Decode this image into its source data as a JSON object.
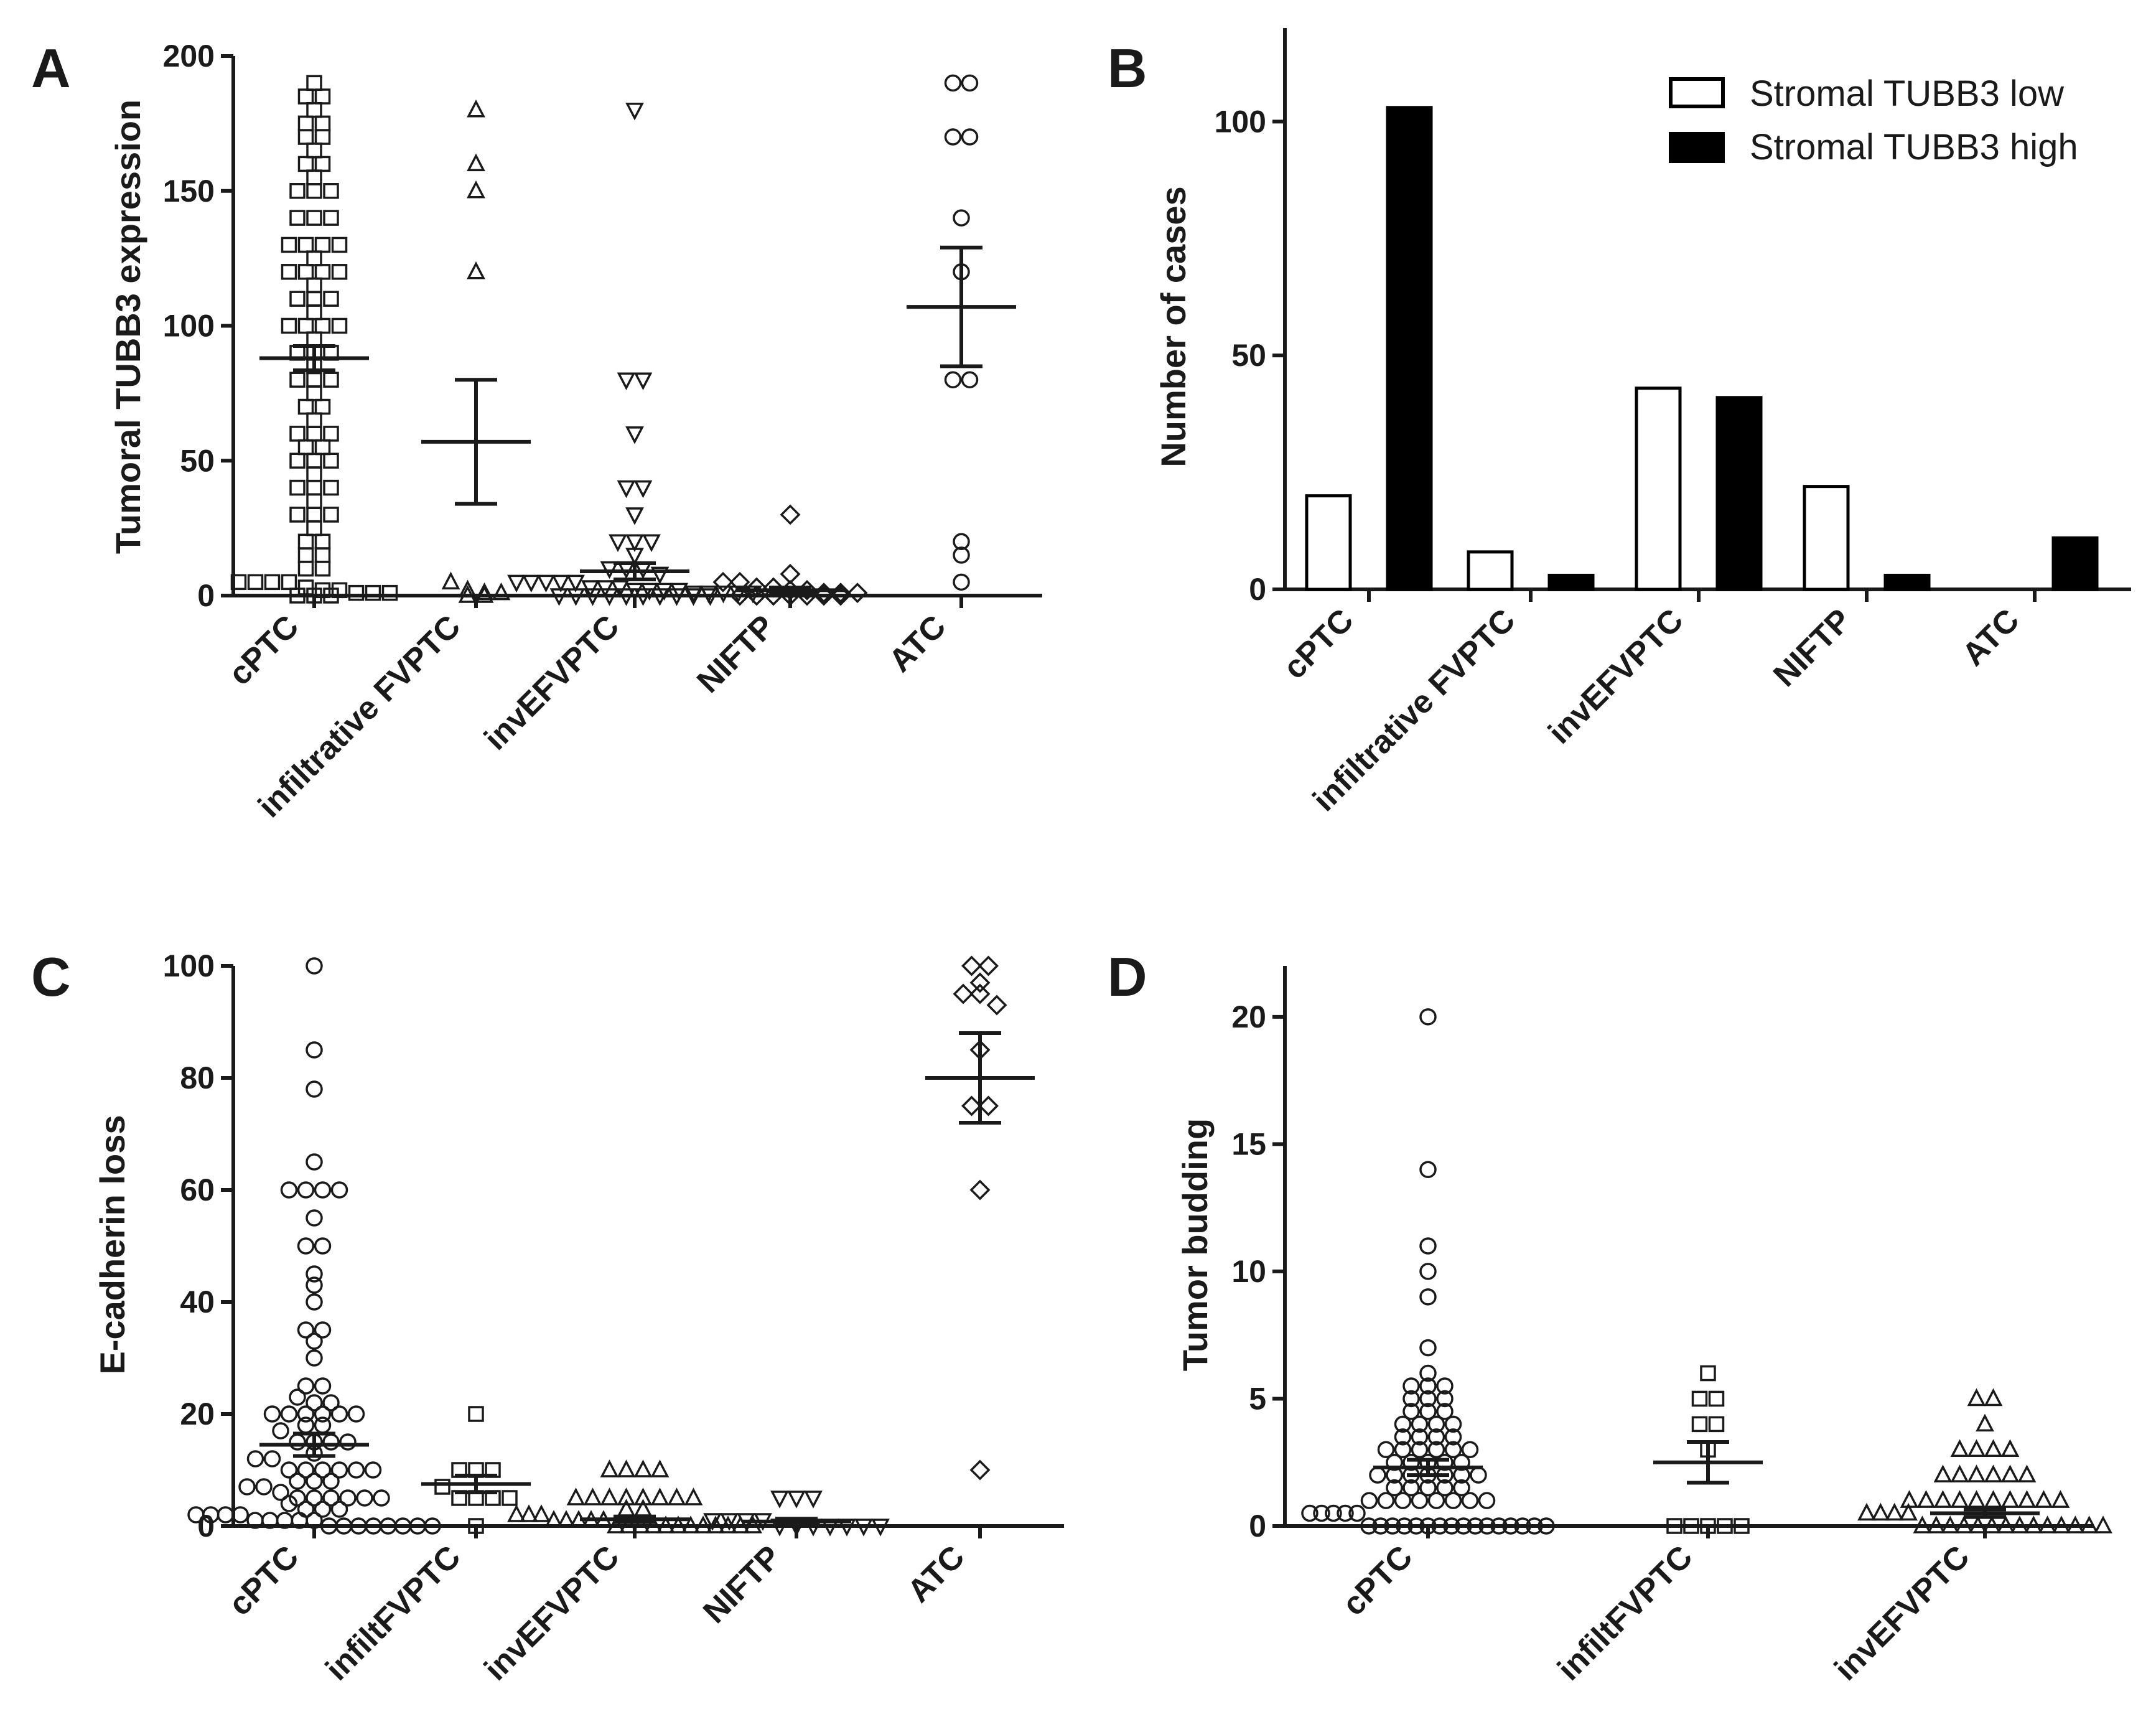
{
  "chart_data": [
    {
      "panel": "A",
      "type": "scatter",
      "ylabel": "Tumoral TUBB3 expression",
      "ylim": [
        0,
        200
      ],
      "yticks": [
        0,
        50,
        100,
        150,
        200
      ],
      "categories": [
        "cPTC",
        "infiltrative FVPTC",
        "invEFVPTC",
        "NIFTP",
        "ATC"
      ],
      "markers": [
        "square",
        "triangle-up",
        "triangle-down",
        "diamond",
        "circle"
      ],
      "groups": [
        {
          "name": "cPTC",
          "mean": 88,
          "sem": 4.5,
          "values": [
            190,
            185,
            185,
            180,
            175,
            175,
            170,
            170,
            165,
            160,
            160,
            155,
            150,
            150,
            150,
            140,
            140,
            140,
            130,
            130,
            130,
            130,
            125,
            120,
            120,
            120,
            120,
            115,
            110,
            110,
            110,
            105,
            100,
            100,
            100,
            100,
            95,
            90,
            90,
            90,
            85,
            80,
            80,
            80,
            75,
            70,
            70,
            65,
            60,
            60,
            60,
            55,
            55,
            50,
            50,
            50,
            45,
            40,
            40,
            40,
            35,
            30,
            30,
            30,
            25,
            20,
            20,
            15,
            15,
            10,
            10,
            5,
            5,
            5,
            5,
            3,
            2,
            2,
            1,
            1,
            1,
            0,
            0,
            0
          ]
        },
        {
          "name": "infiltrative FVPTC",
          "mean": 57,
          "sem": 23,
          "values": [
            180,
            160,
            150,
            120,
            5,
            2,
            1,
            1,
            0,
            0
          ]
        },
        {
          "name": "invEFVPTC",
          "mean": 9,
          "sem": 3,
          "values": [
            180,
            80,
            80,
            60,
            40,
            40,
            30,
            20,
            20,
            20,
            15,
            10,
            10,
            10,
            8,
            5,
            5,
            5,
            5,
            5,
            3,
            3,
            3,
            2,
            2,
            2,
            2,
            1,
            1,
            1,
            1,
            1,
            0,
            0,
            0,
            0,
            0,
            0,
            0,
            0,
            0,
            0
          ]
        },
        {
          "name": "NIFTP",
          "mean": 2,
          "sem": 1,
          "values": [
            30,
            8,
            5,
            5,
            3,
            3,
            2,
            2,
            1,
            1,
            1,
            0,
            0,
            0,
            0,
            0,
            0,
            0
          ]
        },
        {
          "name": "ATC",
          "mean": 107,
          "sem": 22,
          "values": [
            190,
            190,
            170,
            170,
            140,
            120,
            80,
            80,
            20,
            15,
            5
          ]
        }
      ]
    },
    {
      "panel": "B",
      "type": "bar",
      "ylabel": "Number of cases",
      "ylim": [
        0,
        120
      ],
      "yticks": [
        0,
        50,
        100
      ],
      "categories": [
        "cPTC",
        "infiltrative FVPTC",
        "invEFVPTC",
        "NIFTP",
        "ATC"
      ],
      "series": [
        {
          "name": "Stromal TUBB3 low",
          "fill": "#ffffff",
          "values": [
            20,
            8,
            43,
            22,
            0
          ]
        },
        {
          "name": "Stromal TUBB3 high",
          "fill": "#000000",
          "values": [
            103,
            3,
            41,
            3,
            11
          ]
        }
      ],
      "legend_position": "top-right"
    },
    {
      "panel": "C",
      "type": "scatter",
      "ylabel": "E-cadherin loss",
      "ylim": [
        0,
        100
      ],
      "yticks": [
        0,
        20,
        40,
        60,
        80,
        100
      ],
      "categories": [
        "cPTC",
        "infiltFVPTC",
        "invEFVPTC",
        "NIFTP",
        "ATC"
      ],
      "markers": [
        "circle",
        "square",
        "triangle-up",
        "triangle-down",
        "diamond"
      ],
      "groups": [
        {
          "name": "cPTC",
          "mean": 14.5,
          "sem": 2,
          "values": [
            100,
            85,
            78,
            65,
            60,
            60,
            60,
            60,
            55,
            50,
            50,
            45,
            43,
            40,
            35,
            35,
            33,
            30,
            25,
            25,
            23,
            22,
            22,
            20,
            20,
            20,
            20,
            20,
            20,
            18,
            18,
            17,
            15,
            15,
            15,
            15,
            13,
            12,
            12,
            10,
            10,
            10,
            10,
            10,
            10,
            8,
            8,
            8,
            7,
            7,
            6,
            5,
            5,
            5,
            5,
            5,
            5,
            4,
            3,
            3,
            3,
            2,
            2,
            2,
            2,
            1,
            1,
            1,
            1,
            1,
            0,
            0,
            0,
            0,
            0,
            0,
            0,
            0
          ]
        },
        {
          "name": "infiltFVPTC",
          "mean": 7.5,
          "sem": 1.5,
          "values": [
            20,
            10,
            10,
            10,
            7,
            5,
            5,
            5,
            5,
            0
          ]
        },
        {
          "name": "invEFVPTC",
          "mean": 1.2,
          "sem": 0.5,
          "values": [
            10,
            10,
            10,
            10,
            5,
            5,
            5,
            5,
            5,
            5,
            5,
            5,
            3,
            3,
            2,
            2,
            2,
            1,
            1,
            1,
            1,
            1,
            0,
            0,
            0,
            0,
            0,
            0,
            0,
            0,
            0,
            0,
            0,
            0
          ]
        },
        {
          "name": "NIFTP",
          "mean": 0.8,
          "sem": 0.5,
          "values": [
            5,
            5,
            5,
            1,
            1,
            1,
            1,
            0,
            0,
            0,
            0,
            0,
            0,
            0
          ]
        },
        {
          "name": "ATC",
          "mean": 80,
          "sem": 8,
          "values": [
            100,
            100,
            97,
            95,
            95,
            93,
            85,
            75,
            75,
            60,
            10
          ]
        }
      ]
    },
    {
      "panel": "D",
      "type": "scatter",
      "ylabel": "Tumor budding",
      "ylim": [
        0,
        22
      ],
      "yticks": [
        0,
        5,
        10,
        15,
        20
      ],
      "categories": [
        "cPTC",
        "infiltFVPTC",
        "invEFVPTC"
      ],
      "markers": [
        "circle",
        "square",
        "triangle-up"
      ],
      "groups": [
        {
          "name": "cPTC",
          "mean": 2.3,
          "sem": 0.3,
          "values": [
            20,
            14,
            11,
            10,
            9,
            7,
            6,
            5.5,
            5.5,
            5.5,
            5,
            5,
            5,
            4.5,
            4.5,
            4.5,
            4,
            4,
            4,
            4,
            3.5,
            3.5,
            3.5,
            3.5,
            3,
            3,
            3,
            3,
            3,
            3,
            2.5,
            2.5,
            2.5,
            2.5,
            2.5,
            2,
            2,
            2,
            2,
            2,
            2,
            2,
            1.5,
            1.5,
            1.5,
            1.5,
            1.5,
            1,
            1,
            1,
            1,
            1,
            1,
            1,
            1,
            0.5,
            0.5,
            0.5,
            0.5,
            0.5,
            0,
            0,
            0,
            0,
            0,
            0,
            0,
            0,
            0,
            0,
            0,
            0,
            0,
            0,
            0,
            0
          ]
        },
        {
          "name": "infiltFVPTC",
          "mean": 2.5,
          "sem": 0.8,
          "values": [
            6,
            5,
            5,
            4,
            4,
            3,
            0,
            0,
            0,
            0,
            0
          ]
        },
        {
          "name": "invEFVPTC",
          "mean": 0.5,
          "sem": 0.15,
          "values": [
            5,
            5,
            4,
            3,
            3,
            3,
            3,
            2,
            2,
            2,
            2,
            2,
            2,
            1,
            1,
            1,
            1,
            1,
            1,
            1,
            1,
            1,
            1,
            0.5,
            0.5,
            0.5,
            0.5,
            0,
            0,
            0,
            0,
            0,
            0,
            0,
            0,
            0,
            0,
            0,
            0,
            0,
            0
          ]
        }
      ]
    }
  ]
}
